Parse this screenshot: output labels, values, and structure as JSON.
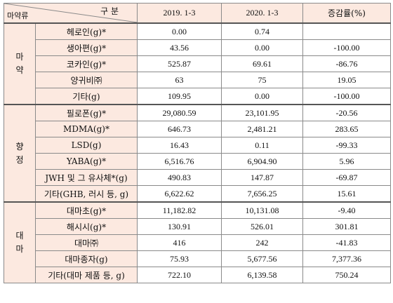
{
  "header": {
    "category_label": "구 분",
    "drug_type_label": "마약류",
    "col_2019": "2019. 1-3",
    "col_2020": "2020. 1-3",
    "col_change": "증감률(%)"
  },
  "groups": [
    {
      "label": [
        "마",
        "약"
      ],
      "rows": [
        {
          "drug": "헤로인(g)*",
          "v2019": "0.00",
          "v2020": "0.74",
          "change": ""
        },
        {
          "drug": "생아편(g)*",
          "v2019": "43.56",
          "v2020": "0.00",
          "change": "-100.00"
        },
        {
          "drug": "코카인(g)*",
          "v2019": "525.87",
          "v2020": "69.61",
          "change": "-86.76"
        },
        {
          "drug": "양귀비㈜",
          "v2019": "63",
          "v2020": "75",
          "change": "19.05"
        },
        {
          "drug": "기타(g)",
          "v2019": "109.95",
          "v2020": "0.00",
          "change": "-100.00"
        }
      ]
    },
    {
      "label": [
        "향",
        "정"
      ],
      "rows": [
        {
          "drug": "필로폰(g)*",
          "v2019": "29,080.59",
          "v2020": "23,101.95",
          "change": "-20.56"
        },
        {
          "drug": "MDMA(g)*",
          "v2019": "646.73",
          "v2020": "2,481.21",
          "change": "283.65"
        },
        {
          "drug": "LSD(g)",
          "v2019": "16.43",
          "v2020": "0.11",
          "change": "-99.33"
        },
        {
          "drug": "YABA(g)*",
          "v2019": "6,516.76",
          "v2020": "6,904.90",
          "change": "5.96"
        },
        {
          "drug": "JWH 및 그 유사체*(g)",
          "v2019": "490.83",
          "v2020": "147.87",
          "change": "-69.87"
        },
        {
          "drug": "기타(GHB, 러시 등, g)",
          "v2019": "6,622.62",
          "v2020": "7,656.25",
          "change": "15.61"
        }
      ]
    },
    {
      "label": [
        "대",
        "마"
      ],
      "rows": [
        {
          "drug": "대마초(g)*",
          "v2019": "11,182.82",
          "v2020": "10,131.08",
          "change": "-9.40"
        },
        {
          "drug": "해시시(g)*",
          "v2019": "130.91",
          "v2020": "526.01",
          "change": "301.81"
        },
        {
          "drug": "대마㈜",
          "v2019": "416",
          "v2020": "242",
          "change": "-41.83"
        },
        {
          "drug": "대마종자(g)",
          "v2019": "75.93",
          "v2020": "5,677.56",
          "change": "7,377.36"
        },
        {
          "drug": "기타(대마 제품 등, g)",
          "v2019": "722.10",
          "v2020": "6,139.58",
          "change": "750.24"
        }
      ]
    }
  ]
}
